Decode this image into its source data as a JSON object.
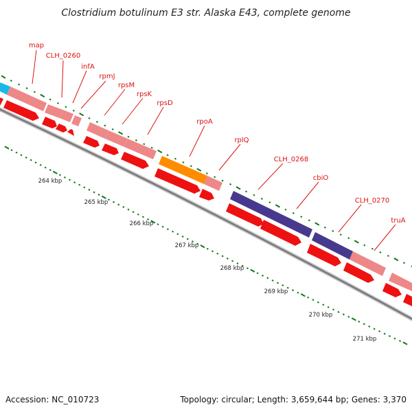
{
  "title": "Clostridium botulinum E3 str. Alaska E43, complete genome",
  "footer": {
    "accession": "Accession: NC_010723",
    "summary": "Topology: circular; Length: 3,659,644 bp; Genes: 3,370"
  },
  "gene_labels": [
    "map",
    "CLH_0260",
    "infA",
    "rpmJ",
    "rpsM",
    "rpsK",
    "rpsD",
    "rpoA",
    "rplQ",
    "CLH_0268",
    "cbiO",
    "CLH_0270",
    "truA"
  ],
  "kbp_labels": [
    "264 kbp",
    "265 kbp",
    "266 kbp",
    "267 kbp",
    "268 kbp",
    "269 kbp",
    "270 kbp",
    "271 kbp"
  ],
  "colors": {
    "cds": "#ee1111",
    "gene": "#ee8888",
    "rrna_blue": "#1ab8e8",
    "orange": "#ff8c00",
    "purple": "#473a8e",
    "tick": "#11771b",
    "backbone": "#777777",
    "label": "#dd1111"
  }
}
